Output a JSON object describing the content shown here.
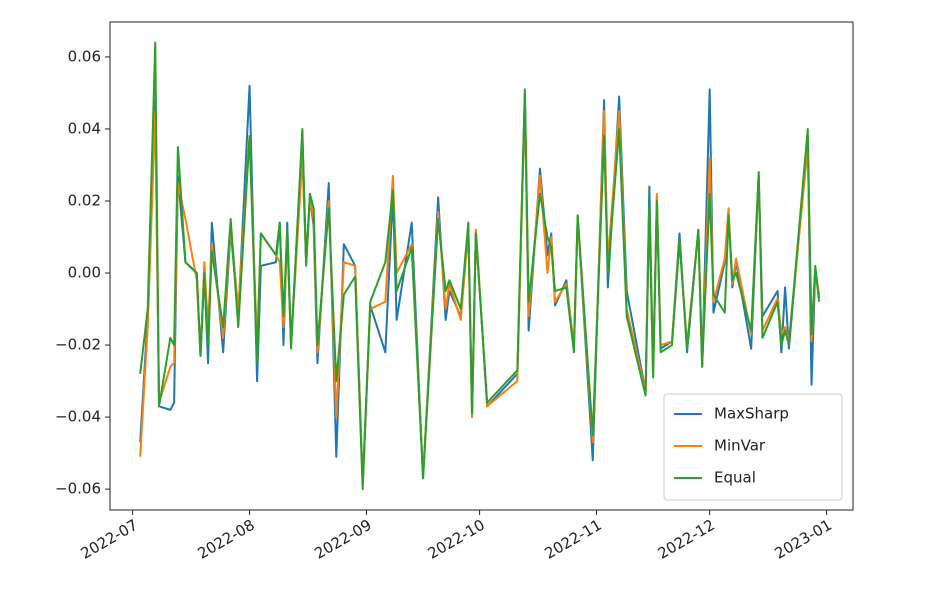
{
  "chart_data": {
    "type": "line",
    "x": [
      "2022-07-03",
      "2022-07-05",
      "2022-07-07",
      "2022-07-08",
      "2022-07-11",
      "2022-07-12",
      "2022-07-13",
      "2022-07-15",
      "2022-07-18",
      "2022-07-19",
      "2022-07-20",
      "2022-07-21",
      "2022-07-22",
      "2022-07-25",
      "2022-07-27",
      "2022-07-29",
      "2022-08-01",
      "2022-08-03",
      "2022-08-04",
      "2022-08-08",
      "2022-08-09",
      "2022-08-10",
      "2022-08-11",
      "2022-08-12",
      "2022-08-15",
      "2022-08-16",
      "2022-08-17",
      "2022-08-18",
      "2022-08-19",
      "2022-08-22",
      "2022-08-24",
      "2022-08-26",
      "2022-08-29",
      "2022-08-31",
      "2022-09-02",
      "2022-09-06",
      "2022-09-08",
      "2022-09-09",
      "2022-09-13",
      "2022-09-16",
      "2022-09-20",
      "2022-09-22",
      "2022-09-23",
      "2022-09-26",
      "2022-09-28",
      "2022-09-29",
      "2022-09-30",
      "2022-10-03",
      "2022-10-11",
      "2022-10-13",
      "2022-10-14",
      "2022-10-17",
      "2022-10-19",
      "2022-10-20",
      "2022-10-21",
      "2022-10-24",
      "2022-10-26",
      "2022-10-27",
      "2022-10-31",
      "2022-11-03",
      "2022-11-04",
      "2022-11-07",
      "2022-11-09",
      "2022-11-14",
      "2022-11-15",
      "2022-11-16",
      "2022-11-17",
      "2022-11-18",
      "2022-11-21",
      "2022-11-23",
      "2022-11-25",
      "2022-11-28",
      "2022-11-29",
      "2022-12-01",
      "2022-12-02",
      "2022-12-05",
      "2022-12-06",
      "2022-12-07",
      "2022-12-08",
      "2022-12-12",
      "2022-12-14",
      "2022-12-15",
      "2022-12-19",
      "2022-12-20",
      "2022-12-21",
      "2022-12-22",
      "2022-12-27",
      "2022-12-28",
      "2022-12-29",
      "2022-12-30"
    ],
    "series": [
      {
        "name": "MaxSharp",
        "color": "#1f77b4",
        "values": [
          -0.047,
          -0.012,
          0.048,
          -0.037,
          -0.038,
          -0.036,
          0.027,
          0.003,
          0.0,
          -0.023,
          0.0,
          -0.025,
          0.014,
          -0.022,
          0.012,
          -0.012,
          0.052,
          -0.03,
          0.002,
          0.003,
          0.014,
          -0.02,
          0.014,
          -0.02,
          0.038,
          0.003,
          0.021,
          0.013,
          -0.025,
          0.025,
          -0.051,
          0.008,
          0.002,
          -0.058,
          -0.009,
          -0.022,
          0.022,
          -0.013,
          0.014,
          -0.057,
          0.021,
          -0.013,
          -0.005,
          -0.012,
          0.013,
          -0.04,
          0.012,
          -0.037,
          -0.028,
          0.05,
          -0.016,
          0.029,
          0.005,
          0.011,
          -0.009,
          -0.002,
          -0.021,
          0.016,
          -0.052,
          0.048,
          -0.004,
          0.049,
          -0.005,
          -0.033,
          0.024,
          -0.028,
          0.021,
          -0.021,
          -0.019,
          0.011,
          -0.022,
          0.012,
          -0.026,
          0.051,
          -0.011,
          0.003,
          0.017,
          -0.004,
          0.003,
          -0.021,
          0.027,
          -0.012,
          -0.005,
          -0.022,
          -0.004,
          -0.021,
          0.038,
          -0.031,
          0.001,
          -0.007
        ]
      },
      {
        "name": "MinVar",
        "color": "#ff7f0e",
        "values": [
          -0.051,
          -0.015,
          0.045,
          -0.036,
          -0.026,
          -0.025,
          0.025,
          0.015,
          -0.002,
          -0.023,
          0.003,
          -0.015,
          0.008,
          -0.018,
          0.013,
          -0.01,
          0.038,
          -0.02,
          0.011,
          0.005,
          0.003,
          -0.015,
          0.01,
          -0.02,
          0.032,
          0.003,
          0.02,
          0.015,
          -0.022,
          0.02,
          -0.04,
          0.003,
          0.002,
          -0.059,
          -0.01,
          -0.008,
          0.027,
          0.0,
          0.008,
          -0.056,
          0.017,
          -0.01,
          -0.003,
          -0.013,
          0.012,
          -0.04,
          0.012,
          -0.037,
          -0.03,
          0.048,
          -0.012,
          0.027,
          0.0,
          0.01,
          -0.008,
          -0.003,
          -0.02,
          0.015,
          -0.047,
          0.045,
          0.003,
          0.045,
          -0.01,
          -0.033,
          0.018,
          -0.028,
          0.022,
          -0.02,
          -0.019,
          0.009,
          -0.02,
          0.012,
          -0.026,
          0.032,
          -0.008,
          0.004,
          0.018,
          -0.003,
          0.004,
          -0.017,
          0.027,
          -0.016,
          -0.007,
          -0.017,
          -0.015,
          -0.019,
          0.035,
          -0.019,
          0.001,
          -0.006
        ]
      },
      {
        "name": "Equal",
        "color": "#2ca02c",
        "values": [
          -0.028,
          -0.01,
          0.064,
          -0.037,
          -0.018,
          -0.02,
          0.035,
          0.003,
          0.0,
          -0.023,
          0.0,
          -0.02,
          0.006,
          -0.015,
          0.015,
          -0.015,
          0.038,
          -0.025,
          0.011,
          0.005,
          0.014,
          -0.012,
          0.012,
          -0.021,
          0.04,
          0.002,
          0.022,
          0.018,
          -0.02,
          0.018,
          -0.03,
          -0.006,
          -0.001,
          -0.06,
          -0.008,
          0.003,
          0.023,
          -0.005,
          0.007,
          -0.057,
          0.015,
          -0.005,
          -0.002,
          -0.01,
          0.014,
          -0.039,
          0.011,
          -0.036,
          -0.027,
          0.051,
          -0.008,
          0.022,
          0.01,
          0.007,
          -0.005,
          -0.004,
          -0.022,
          0.016,
          -0.045,
          0.038,
          0.0,
          0.04,
          -0.012,
          -0.034,
          0.019,
          -0.029,
          0.02,
          -0.022,
          -0.02,
          0.009,
          -0.021,
          0.012,
          -0.026,
          0.022,
          -0.006,
          -0.011,
          0.016,
          -0.002,
          0.0,
          -0.016,
          0.028,
          -0.018,
          -0.008,
          -0.02,
          -0.016,
          -0.02,
          0.04,
          -0.017,
          0.002,
          -0.008
        ]
      }
    ],
    "xlim": [
      "2022-06-25",
      "2023-01-08"
    ],
    "xticks": [
      {
        "value": "2022-07-01",
        "label": "2022-07"
      },
      {
        "value": "2022-08-01",
        "label": "2022-08"
      },
      {
        "value": "2022-09-01",
        "label": "2022-09"
      },
      {
        "value": "2022-10-01",
        "label": "2022-10"
      },
      {
        "value": "2022-11-01",
        "label": "2022-11"
      },
      {
        "value": "2022-12-01",
        "label": "2022-12"
      },
      {
        "value": "2023-01-01",
        "label": "2023-01"
      }
    ],
    "ylim": [
      -0.0658,
      0.0697
    ],
    "yticks": [
      {
        "value": -0.06,
        "label": "−0.06"
      },
      {
        "value": -0.04,
        "label": "−0.04"
      },
      {
        "value": -0.02,
        "label": "−0.02"
      },
      {
        "value": 0,
        "label": "0.00"
      },
      {
        "value": 0.02,
        "label": "0.02"
      },
      {
        "value": 0.04,
        "label": "0.04"
      },
      {
        "value": 0.06,
        "label": "0.06"
      }
    ],
    "legend": "lower right"
  }
}
